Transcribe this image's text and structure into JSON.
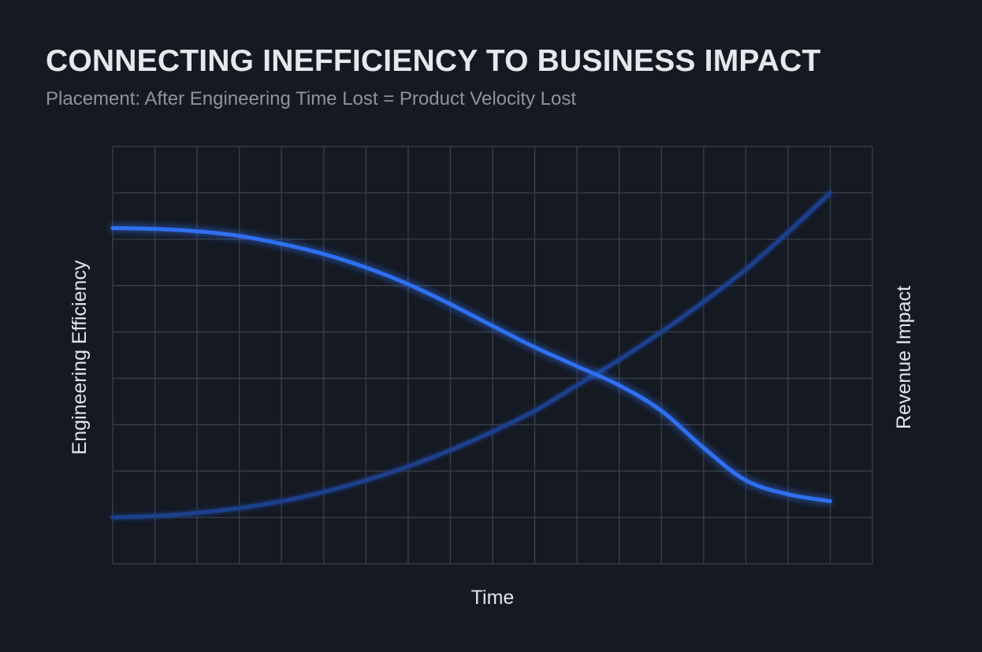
{
  "title": "CONNECTING INEFFICIENCY TO BUSINESS IMPACT",
  "subtitle": "Placement: After Engineering Time Lost = Product Velocity Lost",
  "colors": {
    "background": "#151922",
    "grid": "#3a404b",
    "efficiency_line": "#2f6ff0",
    "revenue_line": "#1c3f8c",
    "title": "#e6e8ec",
    "subtitle": "#8d939d"
  },
  "chart_data": {
    "type": "line",
    "xlabel": "Time",
    "ylabel": "Engineering Efficiency",
    "ylabel_right": "Revenue Impact",
    "x_ticks_labeled": false,
    "y_ticks_labeled": false,
    "grid": true,
    "grid_columns": 18,
    "grid_rows": 9,
    "xlim": [
      0,
      18
    ],
    "ylim": [
      0,
      9
    ],
    "series": [
      {
        "name": "Engineering Efficiency",
        "axis": "left",
        "x": [
          0,
          1,
          2,
          3,
          4,
          5,
          6,
          7,
          8,
          9,
          10,
          11,
          12,
          13,
          14,
          15,
          16,
          17
        ],
        "y": [
          7.24,
          7.22,
          7.17,
          7.07,
          6.9,
          6.68,
          6.39,
          6.03,
          5.6,
          5.13,
          4.67,
          4.26,
          3.85,
          3.3,
          2.5,
          1.8,
          1.5,
          1.35
        ]
      },
      {
        "name": "Revenue Impact",
        "axis": "right",
        "x": [
          0,
          1,
          2,
          3,
          4,
          5,
          6,
          7,
          8,
          9,
          10,
          11,
          12,
          13,
          14,
          15,
          16,
          17
        ],
        "y": [
          1.0,
          1.03,
          1.1,
          1.2,
          1.35,
          1.55,
          1.8,
          2.1,
          2.45,
          2.85,
          3.3,
          3.85,
          4.4,
          5.0,
          5.65,
          6.35,
          7.15,
          8.0
        ]
      }
    ]
  }
}
